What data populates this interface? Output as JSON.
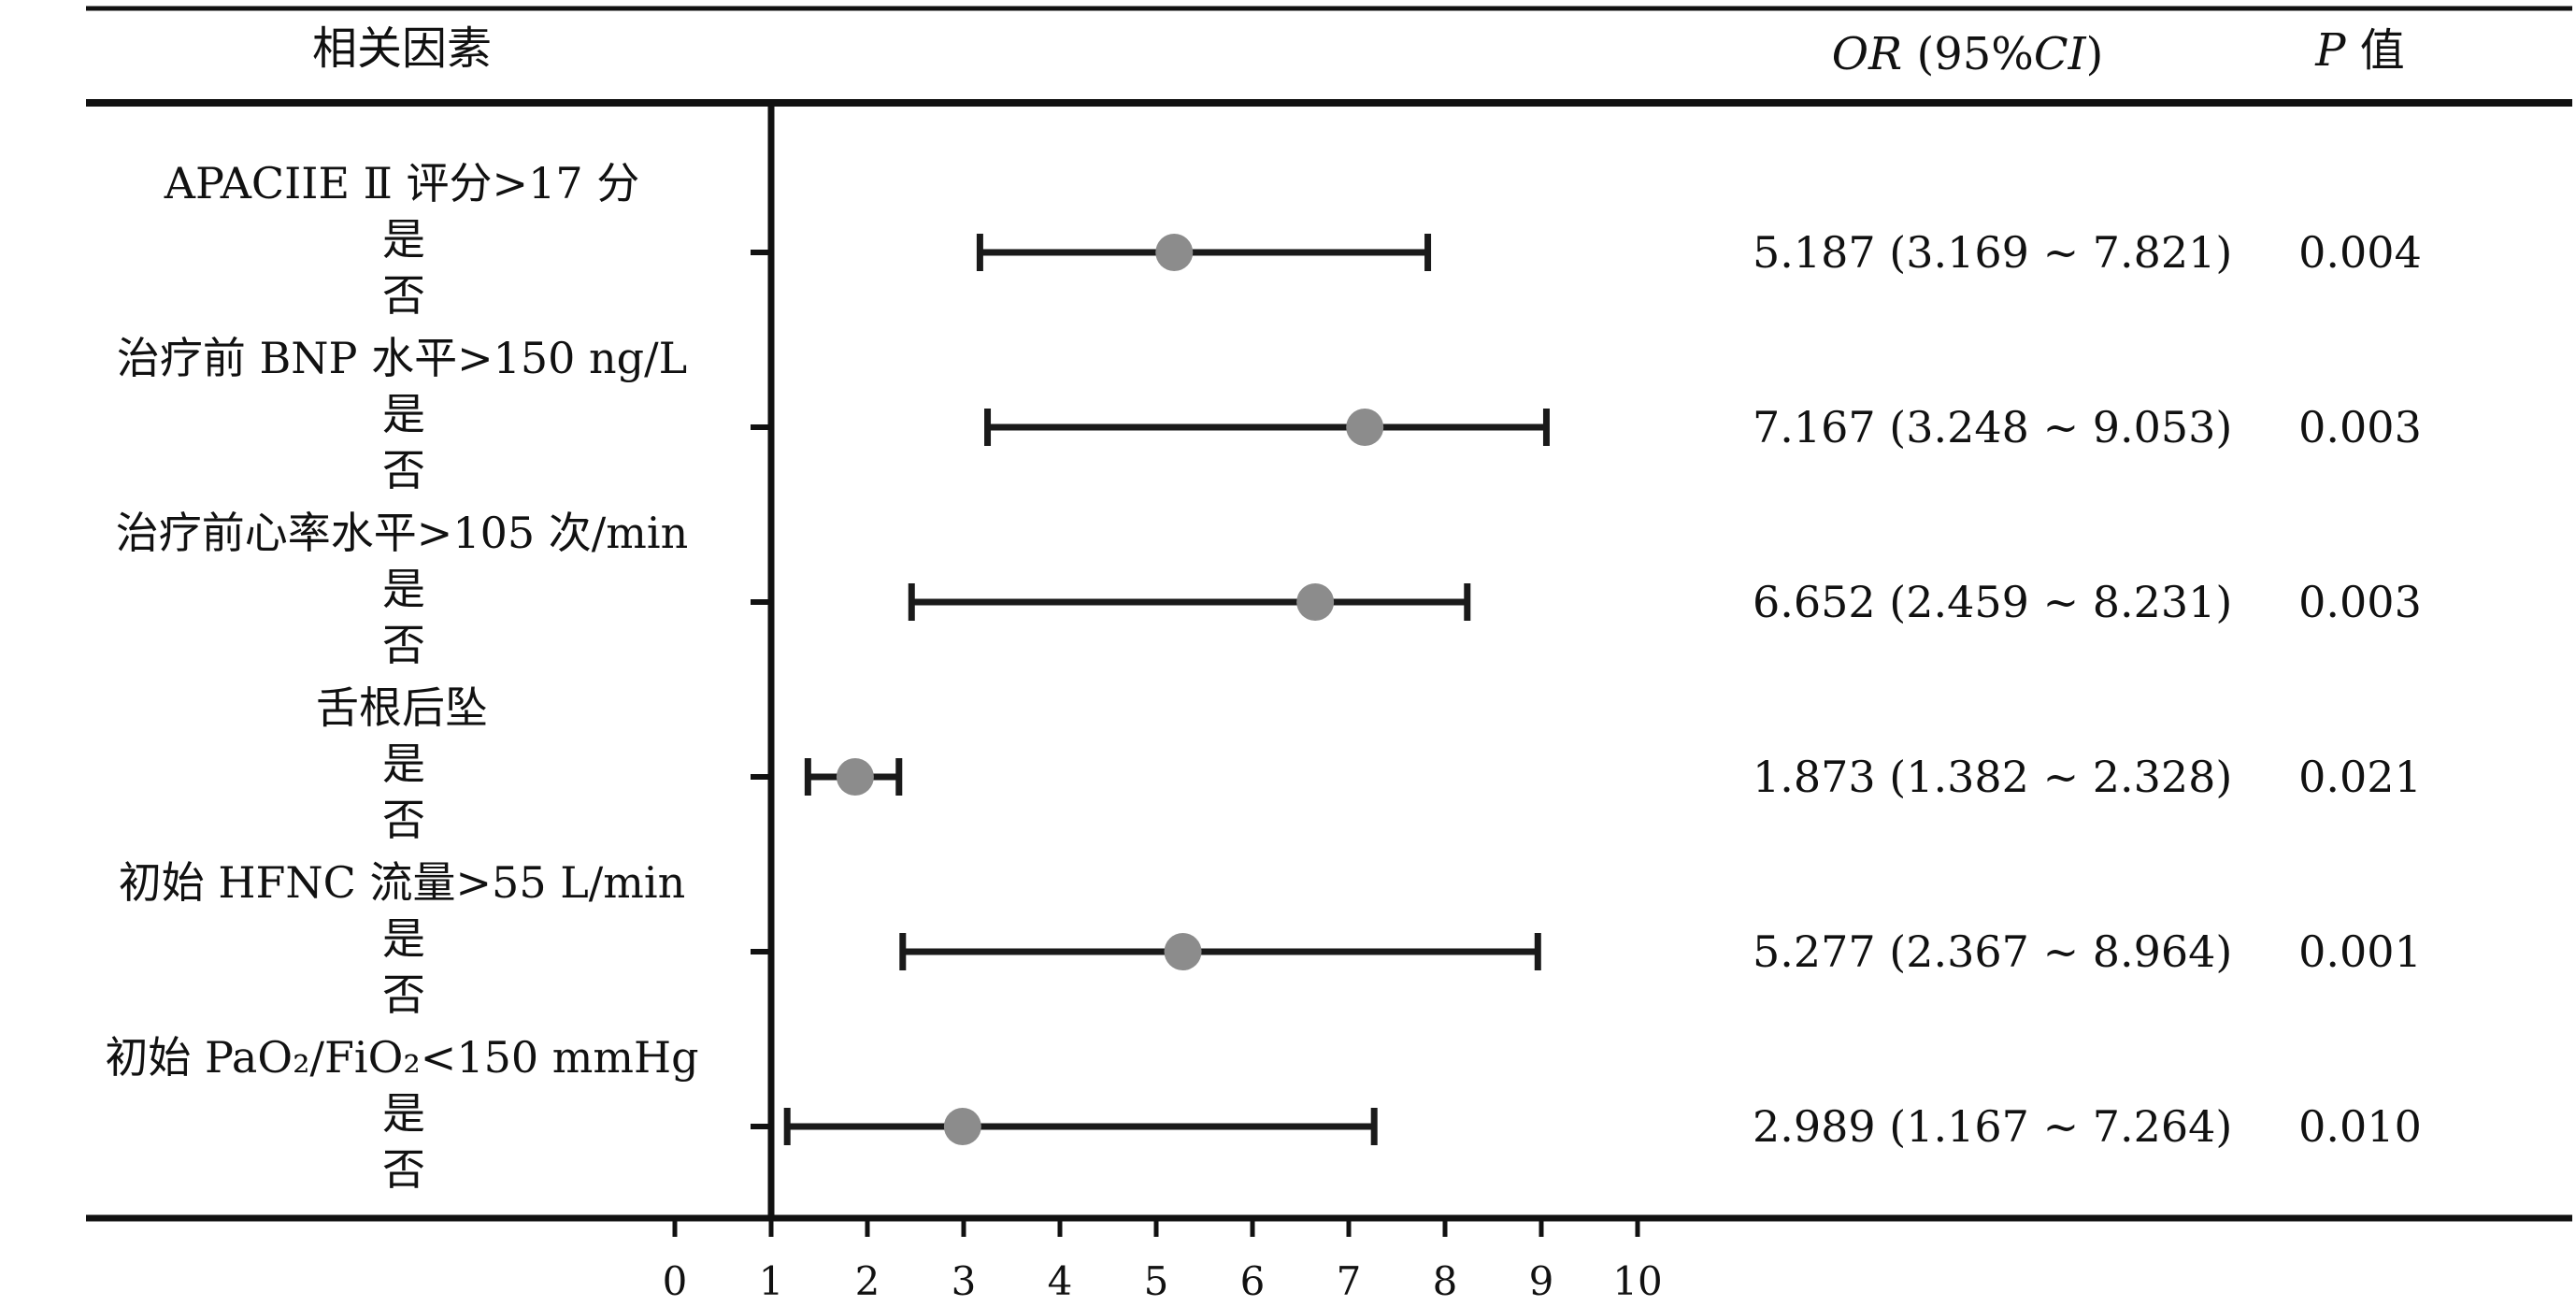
{
  "chart_data": {
    "type": "forest",
    "headers": {
      "factor": "相关因素",
      "or_italic": "OR",
      "or_paren": " (95%",
      "or_ci_italic": "CI",
      "or_close": ")",
      "p_italic": "P",
      "p_suffix": " 值"
    },
    "yes_label": "是",
    "no_label": "否",
    "rows": [
      {
        "factor": "APACIIE Ⅱ 评分>17 分",
        "or": 5.187,
        "lower": 3.169,
        "upper": 7.821,
        "or_text": "5.187 (3.169 ~ 7.821)",
        "p": "0.004"
      },
      {
        "factor": "治疗前 BNP 水平>150 ng/L",
        "or": 7.167,
        "lower": 3.248,
        "upper": 9.053,
        "or_text": "7.167 (3.248 ~ 9.053)",
        "p": "0.003"
      },
      {
        "factor": "治疗前心率水平>105 次/min",
        "or": 6.652,
        "lower": 2.459,
        "upper": 8.231,
        "or_text": "6.652 (2.459 ~ 8.231)",
        "p": "0.003"
      },
      {
        "factor": "舌根后坠",
        "or": 1.873,
        "lower": 1.382,
        "upper": 2.328,
        "or_text": "1.873 (1.382 ~ 2.328)",
        "p": "0.021"
      },
      {
        "factor": "初始 HFNC 流量>55 L/min",
        "or": 5.277,
        "lower": 2.367,
        "upper": 8.964,
        "or_text": "5.277 (2.367 ~ 8.964)",
        "p": "0.001"
      },
      {
        "factor": "初始 PaO₂/FiO₂<150 mmHg",
        "or": 2.989,
        "lower": 1.167,
        "upper": 7.264,
        "or_text": "2.989 (1.167 ~ 7.264)",
        "p": "0.010"
      }
    ],
    "x_ticks": [
      "0",
      "1",
      "2",
      "3",
      "4",
      "5",
      "6",
      "7",
      "8",
      "9",
      "10"
    ],
    "xlim": [
      0,
      10
    ],
    "reference_line": 1
  }
}
